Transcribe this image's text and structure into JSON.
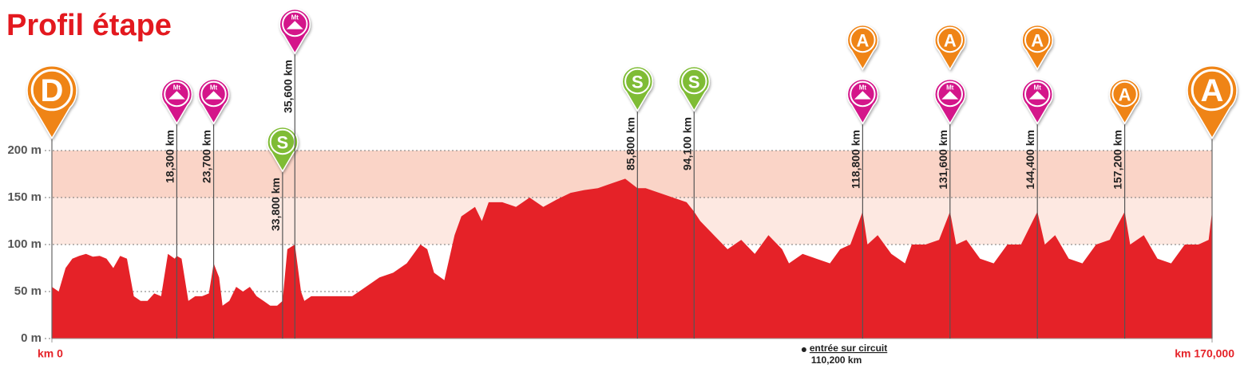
{
  "chart_data": {
    "type": "area",
    "title": "Profil étape",
    "x": [
      0,
      1,
      2,
      3,
      4,
      5,
      6,
      7,
      8,
      9,
      10,
      11,
      12,
      13,
      14,
      15,
      16,
      17,
      18,
      18.3,
      19,
      20,
      21,
      22,
      23,
      23.7,
      24.5,
      25,
      26,
      27,
      28,
      29,
      30,
      31,
      32,
      33,
      33.8,
      34.5,
      35.6,
      36.5,
      37,
      38,
      40,
      42,
      44,
      46,
      48,
      50,
      52,
      54,
      55,
      56,
      57.5,
      59,
      60,
      62,
      63,
      64,
      66,
      68,
      70,
      72,
      74,
      76,
      78,
      80,
      82,
      84,
      85.8,
      87,
      89,
      91,
      93,
      94.1,
      95,
      97,
      99,
      101,
      103,
      105,
      107,
      108,
      110,
      112,
      114,
      115.5,
      117,
      118.8,
      119.5,
      121,
      123,
      125,
      126,
      128,
      130,
      131.6,
      132.5,
      134,
      136,
      138,
      140,
      142,
      144.4,
      145.5,
      147,
      149,
      151,
      153,
      155,
      157.2,
      158,
      160,
      162,
      164,
      166,
      168,
      169.5,
      170
    ],
    "values": [
      55,
      50,
      75,
      85,
      88,
      90,
      87,
      88,
      85,
      75,
      88,
      85,
      45,
      40,
      40,
      48,
      45,
      90,
      85,
      88,
      85,
      40,
      45,
      45,
      48,
      80,
      65,
      35,
      40,
      55,
      50,
      55,
      45,
      40,
      35,
      35,
      40,
      95,
      100,
      50,
      40,
      45,
      45,
      45,
      45,
      55,
      65,
      70,
      80,
      100,
      95,
      70,
      62,
      110,
      130,
      140,
      125,
      145,
      145,
      140,
      150,
      140,
      148,
      155,
      158,
      160,
      165,
      170,
      160,
      160,
      155,
      150,
      145,
      135,
      125,
      110,
      95,
      105,
      90,
      110,
      95,
      80,
      90,
      85,
      80,
      95,
      100,
      135,
      100,
      110,
      90,
      80,
      100,
      100,
      105,
      135,
      100,
      105,
      85,
      80,
      100,
      100,
      135,
      100,
      110,
      85,
      80,
      100,
      105,
      135,
      100,
      110,
      85,
      80,
      100,
      100,
      105,
      135
    ],
    "color": "#e52228",
    "xlim": [
      0,
      170
    ],
    "xticks": [
      {
        "value": 0,
        "label": "km 0"
      },
      {
        "value": 170,
        "label": "km 170,000"
      }
    ],
    "ylim": [
      0,
      200
    ],
    "yticks": [
      {
        "value": 0,
        "label": "0 m"
      },
      {
        "value": 50,
        "label": "50 m"
      },
      {
        "value": 100,
        "label": "100 m"
      },
      {
        "value": 150,
        "label": "150 m"
      },
      {
        "value": 200,
        "label": "200 m"
      }
    ],
    "grid": true,
    "start": {
      "km": 0,
      "icon": {
        "text": "D",
        "color": "#ef8419"
      }
    },
    "finish": {
      "km": 170,
      "icon": {
        "text": "A",
        "color": "#ef8419"
      }
    },
    "markers": [
      {
        "km": 18.3,
        "label": "18,300 km",
        "icons": [
          {
            "text": "Mt",
            "color": "#d4178a",
            "symbol": "mountain"
          }
        ]
      },
      {
        "km": 23.7,
        "label": "23,700 km",
        "icons": [
          {
            "text": "Mt",
            "color": "#d4178a",
            "symbol": "mountain"
          }
        ]
      },
      {
        "km": 33.8,
        "label": "33,800 km",
        "icons": [
          {
            "text": "S",
            "color": "#7fbc35"
          }
        ]
      },
      {
        "km": 35.6,
        "label": "35,600 km",
        "icons": [
          {
            "text": "Mt",
            "color": "#d4178a",
            "symbol": "mountain"
          }
        ]
      },
      {
        "km": 85.8,
        "label": "85,800 km",
        "icons": [
          {
            "text": "S",
            "color": "#7fbc35"
          }
        ]
      },
      {
        "km": 94.1,
        "label": "94,100 km",
        "icons": [
          {
            "text": "S",
            "color": "#7fbc35"
          }
        ]
      },
      {
        "km": 118.8,
        "label": "118,800 km",
        "icons": [
          {
            "text": "A",
            "color": "#ef8419"
          },
          {
            "text": "Mt",
            "color": "#d4178a",
            "symbol": "mountain"
          }
        ]
      },
      {
        "km": 131.6,
        "label": "131,600 km",
        "icons": [
          {
            "text": "A",
            "color": "#ef8419"
          },
          {
            "text": "Mt",
            "color": "#d4178a",
            "symbol": "mountain"
          }
        ]
      },
      {
        "km": 144.4,
        "label": "144,400 km",
        "icons": [
          {
            "text": "A",
            "color": "#ef8419"
          },
          {
            "text": "Mt",
            "color": "#d4178a",
            "symbol": "mountain"
          }
        ]
      },
      {
        "km": 157.2,
        "label": "157,200 km",
        "icons": [
          {
            "text": "A",
            "color": "#ef8419"
          }
        ]
      }
    ],
    "annotation": {
      "km": 110.2,
      "text": "entrée sur circuit",
      "label": "110,200 km"
    }
  }
}
